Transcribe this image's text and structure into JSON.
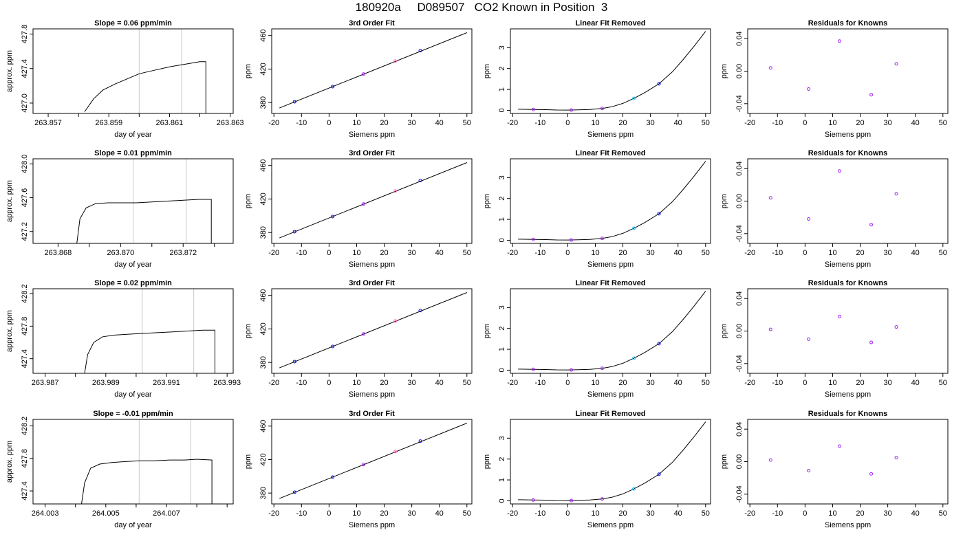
{
  "page_title": "180920a     D089507   CO2 Known in Position  3",
  "colors": {
    "trace": "#000000",
    "marker_blue": "#0000ff",
    "marker_violet": "#a020f0",
    "marker_cyan": "#00bfff",
    "marker_pink": "#ff69b4",
    "vline": "#c8c8c8"
  },
  "chart_data": [
    {
      "type": "line",
      "title": "Slope =  0.06  ppm/min",
      "xlabel": "day of year",
      "ylabel": "approx. ppm",
      "xlim": [
        263.8565,
        263.8631
      ],
      "ylim": [
        426.88,
        427.86
      ],
      "grid": false,
      "xticks": [
        263.857,
        263.858,
        263.859,
        263.86,
        263.861,
        263.862,
        263.863
      ],
      "xtick_labels": [
        "263.857",
        "",
        "263.859",
        "",
        "263.861",
        "",
        "263.863"
      ],
      "yticks": [
        427.0,
        427.4,
        427.8
      ],
      "ytick_labels": [
        "427.0",
        "427.4",
        "427.8"
      ],
      "vlines": [
        263.86,
        263.8614
      ],
      "x": [
        263.8582,
        263.8585,
        263.8588,
        263.8592,
        263.8596,
        263.86,
        263.8605,
        263.861,
        263.8615,
        263.862,
        263.8622,
        263.8622
      ],
      "y": [
        426.9,
        427.05,
        427.15,
        427.22,
        427.28,
        427.34,
        427.38,
        427.42,
        427.45,
        427.48,
        427.48,
        426.88
      ]
    },
    {
      "type": "line",
      "title": "3rd Order Fit",
      "xlabel": "Siemens ppm",
      "ylabel": "ppm",
      "xlim": [
        -20.8,
        51.8
      ],
      "ylim": [
        367,
        468
      ],
      "grid": false,
      "xticks": [
        -20,
        -10,
        0,
        10,
        20,
        30,
        40,
        50
      ],
      "xtick_labels": [
        "-20",
        "-10",
        "0",
        "10",
        "20",
        "30",
        "40",
        "50"
      ],
      "yticks": [
        380,
        420,
        460
      ],
      "ytick_labels": [
        "380",
        "420",
        "460"
      ],
      "fit_line": {
        "x": [
          -18,
          50
        ],
        "y": [
          373.5,
          463.5
        ]
      },
      "points": {
        "x": [
          -12.5,
          1.3,
          12.5,
          24,
          33.1
        ],
        "y": [
          381,
          399,
          414,
          429.5,
          442
        ]
      }
    },
    {
      "type": "line",
      "title": "Linear Fit Removed",
      "xlabel": "Siemens ppm",
      "ylabel": "ppm",
      "xlim": [
        -20.8,
        51.8
      ],
      "ylim": [
        -0.15,
        3.9
      ],
      "grid": false,
      "xticks": [
        -20,
        -10,
        0,
        10,
        20,
        30,
        40,
        50
      ],
      "xtick_labels": [
        "-20",
        "-10",
        "0",
        "10",
        "20",
        "30",
        "40",
        "50"
      ],
      "yticks": [
        0,
        1,
        2,
        3
      ],
      "ytick_labels": [
        "0",
        "1",
        "2",
        "3"
      ],
      "curve": {
        "x": [
          -18,
          -12.5,
          -8,
          -4,
          0,
          4,
          8,
          12.5,
          16,
          20,
          24,
          28,
          33.1,
          38,
          42,
          46,
          50
        ],
        "y": [
          0.05,
          0.04,
          0.03,
          0.015,
          0.01,
          0.02,
          0.04,
          0.09,
          0.17,
          0.33,
          0.57,
          0.85,
          1.27,
          1.85,
          2.45,
          3.1,
          3.78
        ]
      },
      "points": {
        "x": [
          -12.5,
          1.3,
          12.5,
          24,
          33.1
        ],
        "y": [
          0.04,
          0.01,
          0.09,
          0.57,
          1.27
        ]
      }
    },
    {
      "type": "scatter",
      "title": "Residuals for Knowns",
      "xlabel": "Siemens ppm",
      "ylabel": "ppm",
      "xlim": [
        -20.8,
        51.8
      ],
      "ylim": [
        -0.052,
        0.052
      ],
      "grid": false,
      "xticks": [
        -20,
        -10,
        0,
        10,
        20,
        30,
        40,
        50
      ],
      "xtick_labels": [
        "-20",
        "-10",
        "0",
        "10",
        "20",
        "30",
        "40",
        "50"
      ],
      "yticks": [
        -0.04,
        0.0,
        0.04
      ],
      "ytick_labels": [
        "-0.04",
        "0.00",
        "0.04"
      ],
      "points": {
        "x": [
          -12.5,
          1.3,
          12.5,
          24,
          33.1
        ],
        "y": [
          0.004,
          -0.022,
          0.037,
          -0.029,
          0.009
        ]
      }
    },
    {
      "type": "line",
      "title": "Slope =  0.01  ppm/min",
      "xlabel": "day of year",
      "ylabel": "approx. ppm",
      "xlim": [
        263.8672,
        263.8736
      ],
      "ylim": [
        427.06,
        428.06
      ],
      "grid": false,
      "xticks": [
        263.868,
        263.869,
        263.87,
        263.871,
        263.872,
        263.873
      ],
      "xtick_labels": [
        "263.868",
        "",
        "263.870",
        "",
        "263.872",
        ""
      ],
      "yticks": [
        427.2,
        427.6,
        428.0
      ],
      "ytick_labels": [
        "427.2",
        "427.6",
        "428.0"
      ],
      "vlines": [
        263.8704,
        263.8721
      ],
      "x": [
        263.8686,
        263.8687,
        263.8689,
        263.8692,
        263.8696,
        263.87,
        263.8705,
        263.871,
        263.8715,
        263.872,
        263.8725,
        263.8729,
        263.8729
      ],
      "y": [
        427.06,
        427.35,
        427.48,
        427.53,
        427.54,
        427.54,
        427.54,
        427.55,
        427.56,
        427.57,
        427.58,
        427.58,
        427.06
      ]
    },
    {
      "type": "line",
      "title": "3rd Order Fit",
      "xlabel": "Siemens ppm",
      "ylabel": "ppm",
      "xlim": [
        -20.8,
        51.8
      ],
      "ylim": [
        367,
        468
      ],
      "grid": false,
      "xticks": [
        -20,
        -10,
        0,
        10,
        20,
        30,
        40,
        50
      ],
      "xtick_labels": [
        "-20",
        "-10",
        "0",
        "10",
        "20",
        "30",
        "40",
        "50"
      ],
      "yticks": [
        380,
        420,
        460
      ],
      "ytick_labels": [
        "380",
        "420",
        "460"
      ],
      "fit_line": {
        "x": [
          -18,
          50
        ],
        "y": [
          373.5,
          463.5
        ]
      },
      "points": {
        "x": [
          -12.5,
          1.3,
          12.5,
          24,
          33.1
        ],
        "y": [
          381,
          399,
          414,
          429.5,
          442
        ]
      }
    },
    {
      "type": "line",
      "title": "Linear Fit Removed",
      "xlabel": "Siemens ppm",
      "ylabel": "ppm",
      "xlim": [
        -20.8,
        51.8
      ],
      "ylim": [
        -0.15,
        3.9
      ],
      "grid": false,
      "xticks": [
        -20,
        -10,
        0,
        10,
        20,
        30,
        40,
        50
      ],
      "xtick_labels": [
        "-20",
        "-10",
        "0",
        "10",
        "20",
        "30",
        "40",
        "50"
      ],
      "yticks": [
        0,
        1,
        2,
        3
      ],
      "ytick_labels": [
        "0",
        "1",
        "2",
        "3"
      ],
      "curve": {
        "x": [
          -18,
          -12.5,
          -8,
          -4,
          0,
          4,
          8,
          12.5,
          16,
          20,
          24,
          28,
          33.1,
          38,
          42,
          46,
          50
        ],
        "y": [
          0.05,
          0.04,
          0.03,
          0.015,
          0.01,
          0.02,
          0.04,
          0.09,
          0.17,
          0.33,
          0.57,
          0.85,
          1.27,
          1.85,
          2.45,
          3.1,
          3.78
        ]
      },
      "points": {
        "x": [
          -12.5,
          1.3,
          12.5,
          24,
          33.1
        ],
        "y": [
          0.04,
          0.01,
          0.09,
          0.57,
          1.27
        ]
      }
    },
    {
      "type": "scatter",
      "title": "Residuals for Knowns",
      "xlabel": "Siemens ppm",
      "ylabel": "ppm",
      "xlim": [
        -20.8,
        51.8
      ],
      "ylim": [
        -0.052,
        0.052
      ],
      "grid": false,
      "xticks": [
        -20,
        -10,
        0,
        10,
        20,
        30,
        40,
        50
      ],
      "xtick_labels": [
        "-20",
        "-10",
        "0",
        "10",
        "20",
        "30",
        "40",
        "50"
      ],
      "yticks": [
        -0.04,
        0.0,
        0.04
      ],
      "ytick_labels": [
        "-0.04",
        "0.00",
        "0.04"
      ],
      "points": {
        "x": [
          -12.5,
          1.3,
          12.5,
          24,
          33.1
        ],
        "y": [
          0.004,
          -0.022,
          0.037,
          -0.029,
          0.009
        ]
      }
    },
    {
      "type": "line",
      "title": "Slope =  0.02  ppm/min",
      "xlabel": "day of year",
      "ylabel": "approx. ppm",
      "xlim": [
        263.9866,
        263.9932
      ],
      "ylim": [
        427.22,
        428.26
      ],
      "grid": false,
      "xticks": [
        263.987,
        263.988,
        263.989,
        263.99,
        263.991,
        263.992,
        263.993
      ],
      "xtick_labels": [
        "263.987",
        "",
        "263.989",
        "",
        "263.991",
        "",
        "263.993"
      ],
      "yticks": [
        427.4,
        427.8,
        428.2
      ],
      "ytick_labels": [
        "427.4",
        "427.8",
        "428.2"
      ],
      "vlines": [
        263.9902,
        263.9919
      ],
      "x": [
        263.9883,
        263.9884,
        263.9886,
        263.9889,
        263.9893,
        263.9897,
        263.9902,
        263.9907,
        263.9912,
        263.9917,
        263.9922,
        263.9926,
        263.9926
      ],
      "y": [
        427.22,
        427.45,
        427.6,
        427.67,
        427.69,
        427.7,
        427.71,
        427.72,
        427.73,
        427.74,
        427.75,
        427.75,
        427.22
      ]
    },
    {
      "type": "line",
      "title": "3rd Order Fit",
      "xlabel": "Siemens ppm",
      "ylabel": "ppm",
      "xlim": [
        -20.8,
        51.8
      ],
      "ylim": [
        367,
        468
      ],
      "grid": false,
      "xticks": [
        -20,
        -10,
        0,
        10,
        20,
        30,
        40,
        50
      ],
      "xtick_labels": [
        "-20",
        "-10",
        "0",
        "10",
        "20",
        "30",
        "40",
        "50"
      ],
      "yticks": [
        380,
        420,
        460
      ],
      "ytick_labels": [
        "380",
        "420",
        "460"
      ],
      "fit_line": {
        "x": [
          -18,
          50
        ],
        "y": [
          373.5,
          463.5
        ]
      },
      "points": {
        "x": [
          -12.5,
          1.3,
          12.5,
          24,
          33.1
        ],
        "y": [
          381,
          399,
          414,
          429.5,
          442
        ]
      }
    },
    {
      "type": "line",
      "title": "Linear Fit Removed",
      "xlabel": "Siemens ppm",
      "ylabel": "ppm",
      "xlim": [
        -20.8,
        51.8
      ],
      "ylim": [
        -0.15,
        3.9
      ],
      "grid": false,
      "xticks": [
        -20,
        -10,
        0,
        10,
        20,
        30,
        40,
        50
      ],
      "xtick_labels": [
        "-20",
        "-10",
        "0",
        "10",
        "20",
        "30",
        "40",
        "50"
      ],
      "yticks": [
        0,
        1,
        2,
        3
      ],
      "ytick_labels": [
        "0",
        "1",
        "2",
        "3"
      ],
      "curve": {
        "x": [
          -18,
          -12.5,
          -8,
          -4,
          0,
          4,
          8,
          12.5,
          16,
          20,
          24,
          28,
          33.1,
          38,
          42,
          46,
          50
        ],
        "y": [
          0.05,
          0.04,
          0.03,
          0.015,
          0.01,
          0.02,
          0.04,
          0.09,
          0.17,
          0.33,
          0.57,
          0.85,
          1.27,
          1.85,
          2.45,
          3.1,
          3.78
        ]
      },
      "points": {
        "x": [
          -12.5,
          1.3,
          12.5,
          24,
          33.1
        ],
        "y": [
          0.04,
          0.01,
          0.09,
          0.57,
          1.27
        ]
      }
    },
    {
      "type": "scatter",
      "title": "Residuals for Knowns",
      "xlabel": "Siemens ppm",
      "ylabel": "ppm",
      "xlim": [
        -20.8,
        51.8
      ],
      "ylim": [
        -0.052,
        0.052
      ],
      "grid": false,
      "xticks": [
        -20,
        -10,
        0,
        10,
        20,
        30,
        40,
        50
      ],
      "xtick_labels": [
        "-20",
        "-10",
        "0",
        "10",
        "20",
        "30",
        "40",
        "50"
      ],
      "yticks": [
        -0.04,
        0.0,
        0.04
      ],
      "ytick_labels": [
        "-0.04",
        "0.00",
        "0.04"
      ],
      "points": {
        "x": [
          -12.5,
          1.3,
          12.5,
          24,
          33.1
        ],
        "y": [
          0.002,
          -0.01,
          0.018,
          -0.014,
          0.005
        ]
      }
    },
    {
      "type": "line",
      "title": "Slope =  -0.01  ppm/min",
      "xlabel": "day of year",
      "ylabel": "approx. ppm",
      "xlim": [
        264.0026,
        264.0092
      ],
      "ylim": [
        427.24,
        428.28
      ],
      "grid": false,
      "xticks": [
        264.003,
        264.004,
        264.005,
        264.006,
        264.007,
        264.008,
        264.009
      ],
      "xtick_labels": [
        "264.003",
        "",
        "264.005",
        "",
        "264.007",
        "",
        ""
      ],
      "yticks": [
        427.4,
        427.8,
        428.2
      ],
      "ytick_labels": [
        "427.4",
        "427.8",
        "428.2"
      ],
      "vlines": [
        264.0061,
        264.0078
      ],
      "x": [
        264.0042,
        264.0043,
        264.0045,
        264.0048,
        264.0052,
        264.0056,
        264.0061,
        264.0066,
        264.0071,
        264.0076,
        264.008,
        264.0085,
        264.0085
      ],
      "y": [
        427.24,
        427.5,
        427.68,
        427.73,
        427.75,
        427.76,
        427.77,
        427.77,
        427.78,
        427.78,
        427.79,
        427.78,
        427.24
      ]
    },
    {
      "type": "line",
      "title": "3rd Order Fit",
      "xlabel": "Siemens ppm",
      "ylabel": "ppm",
      "xlim": [
        -20.8,
        51.8
      ],
      "ylim": [
        367,
        468
      ],
      "grid": false,
      "xticks": [
        -20,
        -10,
        0,
        10,
        20,
        30,
        40,
        50
      ],
      "xtick_labels": [
        "-20",
        "-10",
        "0",
        "10",
        "20",
        "30",
        "40",
        "50"
      ],
      "yticks": [
        380,
        420,
        460
      ],
      "ytick_labels": [
        "380",
        "420",
        "460"
      ],
      "fit_line": {
        "x": [
          -18,
          50
        ],
        "y": [
          373.5,
          463.5
        ]
      },
      "points": {
        "x": [
          -12.5,
          1.3,
          12.5,
          24,
          33.1
        ],
        "y": [
          381,
          399,
          414,
          429.5,
          442
        ]
      }
    },
    {
      "type": "line",
      "title": "Linear Fit Removed",
      "xlabel": "Siemens ppm",
      "ylabel": "ppm",
      "xlim": [
        -20.8,
        51.8
      ],
      "ylim": [
        -0.15,
        3.9
      ],
      "grid": false,
      "xticks": [
        -20,
        -10,
        0,
        10,
        20,
        30,
        40,
        50
      ],
      "xtick_labels": [
        "-20",
        "-10",
        "0",
        "10",
        "20",
        "30",
        "40",
        "50"
      ],
      "yticks": [
        0,
        1,
        2,
        3
      ],
      "ytick_labels": [
        "0",
        "1",
        "2",
        "3"
      ],
      "curve": {
        "x": [
          -18,
          -12.5,
          -8,
          -4,
          0,
          4,
          8,
          12.5,
          16,
          20,
          24,
          28,
          33.1,
          38,
          42,
          46,
          50
        ],
        "y": [
          0.05,
          0.04,
          0.03,
          0.015,
          0.01,
          0.02,
          0.04,
          0.09,
          0.17,
          0.33,
          0.57,
          0.85,
          1.27,
          1.85,
          2.45,
          3.1,
          3.78
        ]
      },
      "points": {
        "x": [
          -12.5,
          1.3,
          12.5,
          24,
          33.1
        ],
        "y": [
          0.04,
          0.01,
          0.09,
          0.57,
          1.27
        ]
      }
    },
    {
      "type": "scatter",
      "title": "Residuals for Knowns",
      "xlabel": "Siemens ppm",
      "ylabel": "ppm",
      "xlim": [
        -20.8,
        51.8
      ],
      "ylim": [
        -0.052,
        0.052
      ],
      "grid": false,
      "xticks": [
        -20,
        -10,
        0,
        10,
        20,
        30,
        40,
        50
      ],
      "xtick_labels": [
        "-20",
        "-10",
        "0",
        "10",
        "20",
        "30",
        "40",
        "50"
      ],
      "yticks": [
        -0.04,
        0.0,
        0.04
      ],
      "ytick_labels": [
        "-0.04",
        "0.00",
        "0.04"
      ],
      "points": {
        "x": [
          -12.5,
          1.3,
          12.5,
          24,
          33.1
        ],
        "y": [
          0.002,
          -0.011,
          0.019,
          -0.015,
          0.005
        ]
      }
    }
  ]
}
